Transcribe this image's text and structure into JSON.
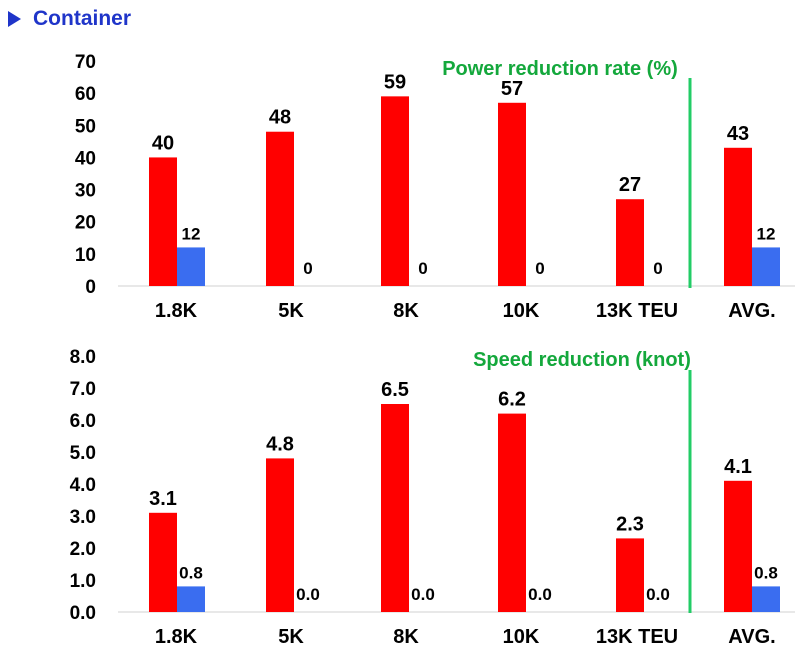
{
  "header": {
    "title": "Container"
  },
  "colors": {
    "primary": "#ff0000",
    "secondary": "#3a6df0",
    "divider": "#22cc66",
    "annotation": "#14a83c",
    "heading": "#1f35c9"
  },
  "chart_data": [
    {
      "type": "bar",
      "annotation": "Power reduction rate (%)",
      "categories": [
        "1.8K",
        "5K",
        "8K",
        "10K",
        "13K TEU",
        "AVG."
      ],
      "series": [
        {
          "values": [
            40,
            48,
            59,
            57,
            27,
            43
          ],
          "labels": [
            "40",
            "48",
            "59",
            "57",
            "27",
            "43"
          ]
        },
        {
          "values": [
            12,
            0,
            0,
            0,
            0,
            12
          ],
          "labels": [
            "12",
            "0",
            "0",
            "0",
            "0",
            "12"
          ]
        }
      ],
      "ylim": [
        0,
        70
      ],
      "yticks": [
        "0",
        "10",
        "20",
        "30",
        "40",
        "50",
        "60",
        "70"
      ],
      "divider_after": "13K TEU"
    },
    {
      "type": "bar",
      "annotation": "Speed reduction (knot)",
      "categories": [
        "1.8K",
        "5K",
        "8K",
        "10K",
        "13K TEU",
        "AVG."
      ],
      "series": [
        {
          "values": [
            3.1,
            4.8,
            6.5,
            6.2,
            2.3,
            4.1
          ],
          "labels": [
            "3.1",
            "4.8",
            "6.5",
            "6.2",
            "2.3",
            "4.1"
          ]
        },
        {
          "values": [
            0.8,
            0.0,
            0.0,
            0.0,
            0.0,
            0.8
          ],
          "labels": [
            "0.8",
            "0.0",
            "0.0",
            "0.0",
            "0.0",
            "0.8"
          ]
        }
      ],
      "ylim": [
        0,
        8
      ],
      "yticks": [
        "0.0",
        "1.0",
        "2.0",
        "3.0",
        "4.0",
        "5.0",
        "6.0",
        "7.0",
        "8.0"
      ],
      "divider_after": "13K TEU"
    }
  ]
}
